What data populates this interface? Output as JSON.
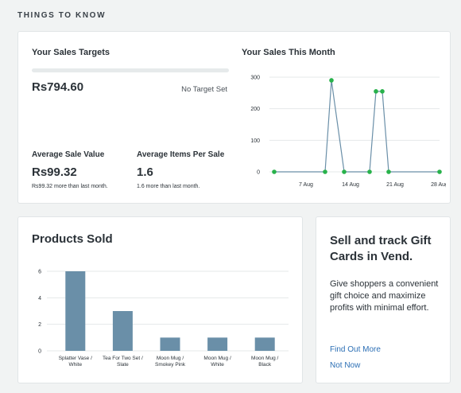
{
  "section_title": "THINGS TO KNOW",
  "sales_targets": {
    "title": "Your Sales Targets",
    "amount": "Rs794.60",
    "target_status": "No Target Set",
    "progress": 0
  },
  "average_sale": {
    "label": "Average Sale Value",
    "value": "Rs99.32",
    "note": "Rs99.32 more than last month."
  },
  "average_items": {
    "label": "Average Items Per Sale",
    "value": "1.6",
    "note": "1.6 more than last month."
  },
  "colors": {
    "line": "#6a8fa8",
    "point": "#28b24b",
    "bar": "#6a8fa8",
    "link": "#2c6fb5"
  },
  "gift_cards": {
    "heading": "Sell and track Gift Cards in Vend.",
    "body": "Give shoppers a convenient gift choice and maximize profits with minimal effort.",
    "find_out_more": "Find Out More",
    "not_now": "Not Now"
  },
  "chart_data": [
    {
      "type": "line",
      "title": "Your Sales This Month",
      "x": [
        "2 Aug",
        "3 Aug",
        "4 Aug",
        "5 Aug",
        "6 Aug",
        "7 Aug",
        "8 Aug",
        "9 Aug",
        "10 Aug",
        "11 Aug",
        "12 Aug",
        "13 Aug",
        "14 Aug",
        "15 Aug",
        "16 Aug",
        "17 Aug",
        "18 Aug",
        "19 Aug",
        "20 Aug",
        "21 Aug",
        "22 Aug",
        "23 Aug",
        "24 Aug",
        "25 Aug",
        "26 Aug",
        "27 Aug",
        "28 Aug"
      ],
      "y": [
        0,
        null,
        null,
        null,
        null,
        null,
        null,
        null,
        0,
        290,
        null,
        0,
        null,
        null,
        null,
        0,
        255,
        255,
        0,
        null,
        null,
        null,
        null,
        null,
        null,
        null,
        0
      ],
      "markers": [
        "2 Aug",
        "10 Aug",
        "11 Aug",
        "13 Aug",
        "17 Aug",
        "18 Aug",
        "19 Aug",
        "20 Aug",
        "28 Aug"
      ],
      "xticks": [
        "7 Aug",
        "14 Aug",
        "21 Aug",
        "28 Aug"
      ],
      "yticks": [
        0,
        100,
        200,
        300
      ],
      "ylim": [
        0,
        300
      ]
    },
    {
      "type": "bar",
      "title": "Products Sold",
      "categories": [
        [
          "Splatter Vase /",
          "White"
        ],
        [
          "Tea For Two Set /",
          "Slate"
        ],
        [
          "Moon Mug /",
          "Smokey Pink"
        ],
        [
          "Moon Mug /",
          "White"
        ],
        [
          "Moon Mug /",
          "Black"
        ]
      ],
      "values": [
        6,
        3,
        1,
        1,
        1
      ],
      "yticks": [
        0,
        2,
        4,
        6
      ],
      "ylim": [
        0,
        6
      ]
    }
  ]
}
